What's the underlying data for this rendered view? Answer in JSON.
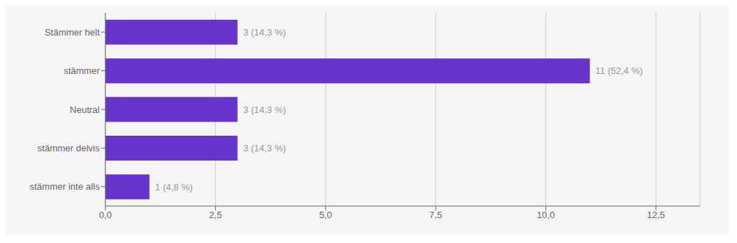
{
  "chart_data": {
    "type": "bar",
    "orientation": "horizontal",
    "categories": [
      "Stämmer helt",
      "stämmer",
      "Neutral",
      "stämmer delvis",
      "stämmer inte alls"
    ],
    "values": [
      3,
      11,
      3,
      3,
      1
    ],
    "value_labels": [
      "3 (14,3 %)",
      "11 (52,4 %)",
      "3 (14,3 %)",
      "3 (14,3 %)",
      "1 (4,8 %)"
    ],
    "color": "#6633cc",
    "xlim": [
      0,
      13.5
    ],
    "xticks": [
      {
        "value": 0.0,
        "label": "0,0"
      },
      {
        "value": 2.5,
        "label": "2,5"
      },
      {
        "value": 5.0,
        "label": "5,0"
      },
      {
        "value": 7.5,
        "label": "7,5"
      },
      {
        "value": 10.0,
        "label": "10,0"
      },
      {
        "value": 12.5,
        "label": "12,5"
      }
    ],
    "grid": true
  }
}
